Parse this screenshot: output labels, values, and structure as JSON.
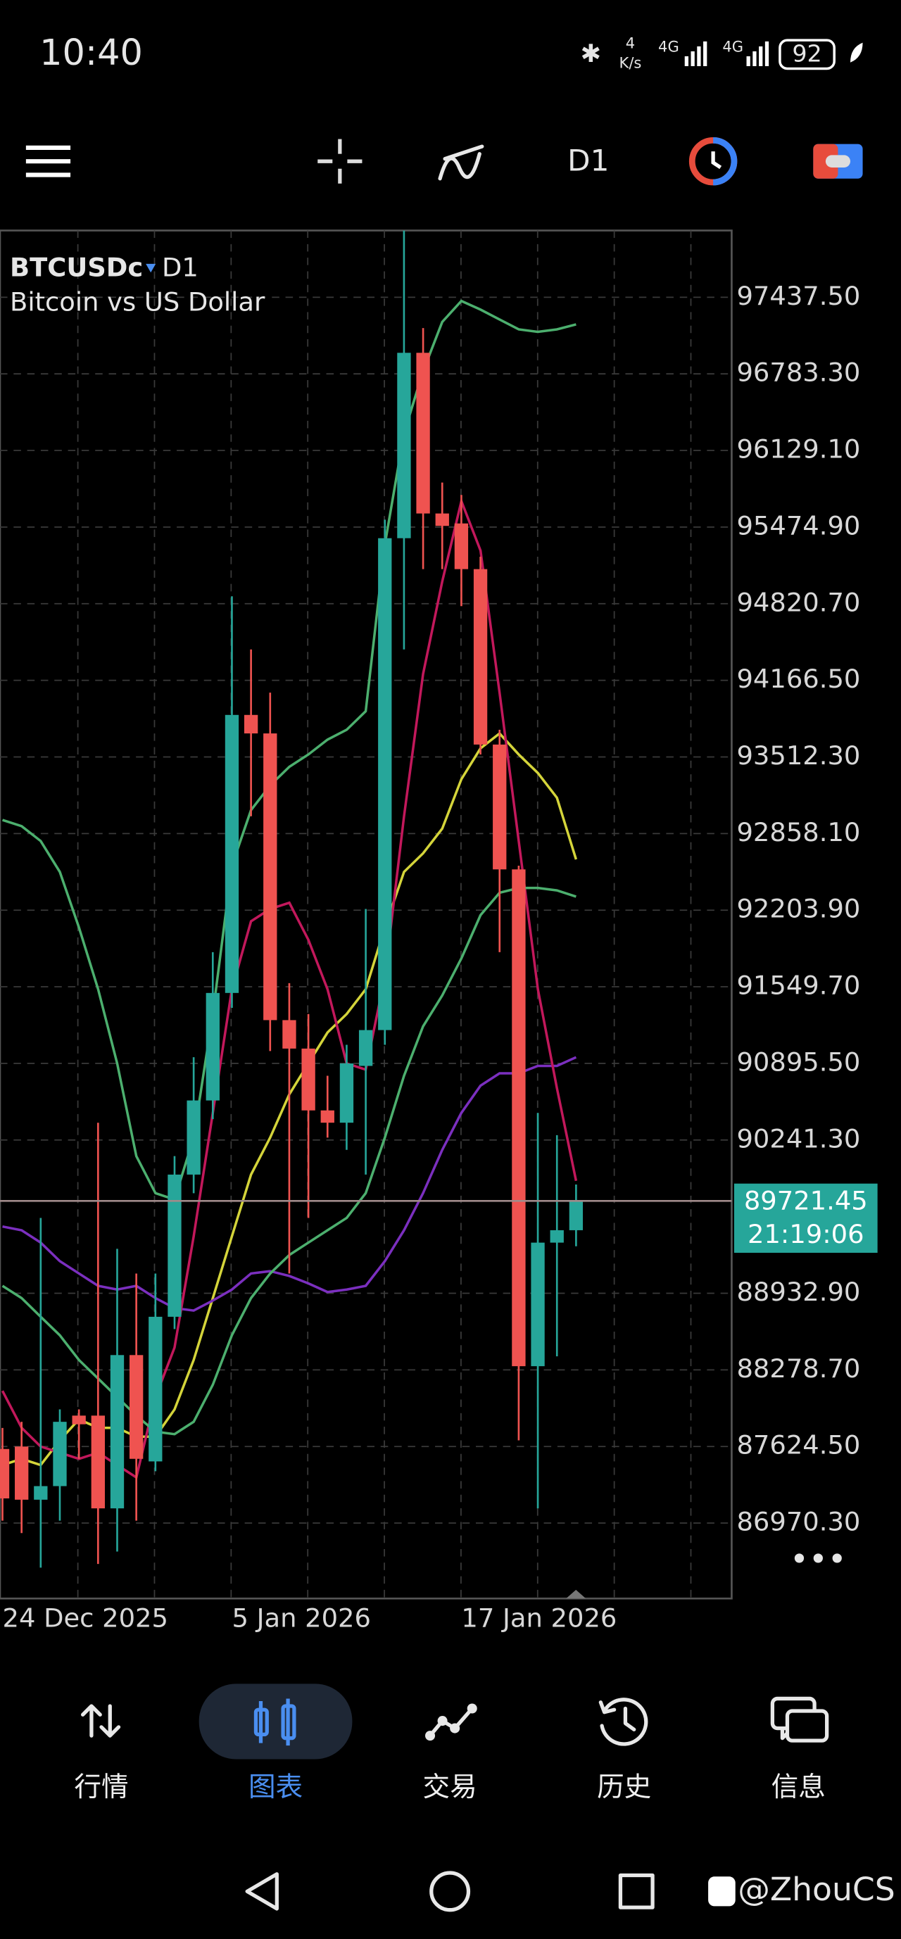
{
  "status_bar": {
    "time": "10:40",
    "speed": "4",
    "speed_unit": "K/s",
    "network_1": "4G",
    "network_2": "4G",
    "battery": "92"
  },
  "toolbar": {
    "timeframe": "D1"
  },
  "chart_data": {
    "type": "candlestick",
    "symbol": "BTCUSDc",
    "timeframe": "D1",
    "description": "Bitcoin vs US Dollar",
    "categories": [
      "24 Dec 2025",
      null,
      null,
      null,
      null,
      null,
      null,
      null,
      null,
      null,
      null,
      null,
      "5 Jan 2026",
      null,
      null,
      null,
      null,
      null,
      null,
      null,
      null,
      null,
      null,
      null,
      "17 Jan 2026",
      null,
      null,
      null,
      null,
      null,
      null
    ],
    "open": [
      87603,
      87624,
      87170,
      87286,
      87888,
      87888,
      87096,
      88405,
      87497,
      88732,
      89946,
      90579,
      91497,
      93871,
      93713,
      91265,
      91022,
      90494,
      90389,
      90874,
      91180,
      95380,
      96963,
      95591,
      95506,
      95116,
      93618,
      92552,
      88310,
      89365,
      89471
    ],
    "high": [
      87783,
      87835,
      89576,
      87941,
      87941,
      90389,
      89312,
      89101,
      89101,
      90104,
      90948,
      91845,
      94884,
      94430,
      94061,
      91581,
      91317,
      90790,
      91054,
      92214,
      95538,
      98007,
      97174,
      95855,
      95749,
      95222,
      93744,
      92584,
      90473,
      90283,
      89861
    ],
    "low": [
      86991,
      86885,
      86590,
      86991,
      87519,
      86621,
      86727,
      86991,
      87413,
      88627,
      89787,
      90420,
      91370,
      93006,
      91001,
      89101,
      89576,
      90262,
      90157,
      89946,
      91054,
      94430,
      95116,
      95116,
      94800,
      93533,
      91845,
      87677,
      87096,
      88394,
      89334
    ],
    "close": [
      87181,
      87170,
      87286,
      87835,
      87814,
      87096,
      88405,
      87519,
      88732,
      89946,
      90579,
      91497,
      93871,
      93713,
      91265,
      91022,
      90494,
      90389,
      90895,
      91180,
      95380,
      96963,
      95591,
      95485,
      95116,
      93618,
      92552,
      88310,
      89365,
      89471,
      89721.45
    ],
    "up_color": "#26a69a",
    "down_color": "#ef5350",
    "series": [
      {
        "color": "#d4d43a",
        "values": [
          87466,
          87519,
          87466,
          87677,
          87856,
          87783,
          87783,
          87709,
          87709,
          87941,
          88363,
          88891,
          89418,
          89946,
          90262,
          90632,
          90895,
          91159,
          91317,
          91528,
          92056,
          92531,
          92689,
          92900,
          93322,
          93586,
          93713,
          93533,
          93375,
          93164,
          92637
        ]
      },
      {
        "color": "#7b2fbf",
        "values": [
          89502,
          89471,
          89365,
          89207,
          89101,
          88996,
          88964,
          88996,
          88891,
          88806,
          88785,
          88870,
          88964,
          89101,
          89122,
          89080,
          89017,
          88943,
          88964,
          88996,
          89207,
          89471,
          89787,
          90157,
          90473,
          90705,
          90811,
          90811,
          90874,
          90874,
          90948
        ]
      },
      {
        "color": "#c2185b",
        "values": [
          88099,
          87783,
          87624,
          87571,
          87519,
          87571,
          87466,
          87360,
          88046,
          88468,
          89418,
          90473,
          91528,
          92109,
          92214,
          92267,
          91950,
          91528,
          90895,
          90843,
          91634,
          93006,
          94219,
          95010,
          95696,
          95274,
          94061,
          92795,
          91528,
          90684,
          89893
        ]
      },
      {
        "color": "#4caf6e",
        "values": [
          92974,
          92921,
          92795,
          92531,
          92056,
          91528,
          90895,
          90104,
          89787,
          89734,
          90262,
          91317,
          92584,
          93058,
          93269,
          93428,
          93533,
          93660,
          93744,
          93903,
          95327,
          96277,
          96804,
          97226,
          97406,
          97332,
          97248,
          97163,
          97142,
          97163,
          97205
        ]
      },
      {
        "color": "#4caf6e",
        "values": [
          88996,
          88891,
          88732,
          88574,
          88363,
          88205,
          88046,
          87888,
          87751,
          87730,
          87835,
          88152,
          88574,
          88891,
          89101,
          89260,
          89365,
          89471,
          89576,
          89787,
          90262,
          90790,
          91212,
          91476,
          91792,
          92162,
          92352,
          92394,
          92394,
          92373,
          92320
        ]
      }
    ],
    "ylim": [
      86326.3,
      98007.3
    ],
    "yticks": [
      {
        "value": 86970.3,
        "label": "86970.30"
      },
      {
        "value": 87624.5,
        "label": "87624.50"
      },
      {
        "value": 88278.7,
        "label": "88278.70"
      },
      {
        "value": 88932.9,
        "label": "88932.90"
      },
      {
        "value": 90241.3,
        "label": "90241.30"
      },
      {
        "value": 90895.5,
        "label": "90895.50"
      },
      {
        "value": 91549.7,
        "label": "91549.70"
      },
      {
        "value": 92203.9,
        "label": "92203.90"
      },
      {
        "value": 92858.1,
        "label": "92858.10"
      },
      {
        "value": 93512.3,
        "label": "93512.30"
      },
      {
        "value": 94166.5,
        "label": "94166.50"
      },
      {
        "value": 94820.7,
        "label": "94820.70"
      },
      {
        "value": 95474.9,
        "label": "95474.90"
      },
      {
        "value": 96129.1,
        "label": "96129.10"
      },
      {
        "value": 96783.3,
        "label": "96783.30"
      },
      {
        "value": 97437.5,
        "label": "97437.50"
      }
    ],
    "grid": true,
    "last_price": 89721.45,
    "countdown": "21:19:06"
  },
  "nav": [
    {
      "label": "行情"
    },
    {
      "label": "图表"
    },
    {
      "label": "交易"
    },
    {
      "label": "历史"
    },
    {
      "label": "信息"
    }
  ],
  "watermark": "@ZhouCS"
}
